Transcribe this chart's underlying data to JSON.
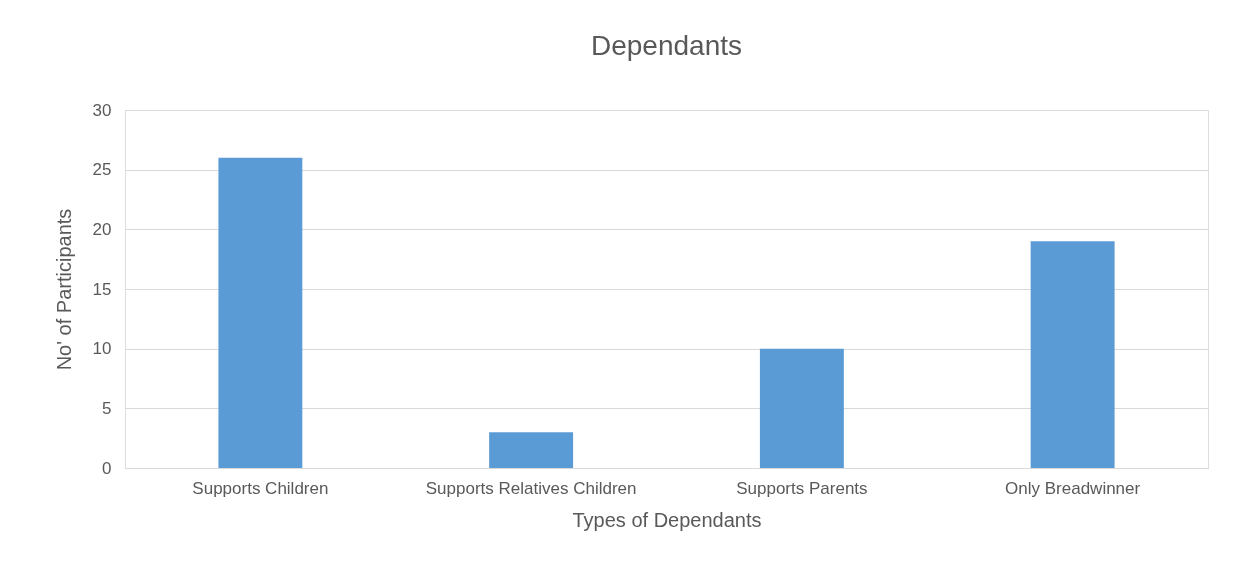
{
  "chart_data": {
    "type": "bar",
    "title": "Dependants",
    "xlabel": "Types of Dependants",
    "ylabel": "No' of Participants",
    "categories": [
      "Supports Children",
      "Supports Relatives Children",
      "Supports Parents",
      "Only Breadwinner"
    ],
    "values": [
      26,
      3,
      10,
      19
    ],
    "color": "#5b9bd5",
    "ylim": [
      0,
      30
    ],
    "yticks": [
      0,
      5,
      10,
      15,
      20,
      25,
      30
    ],
    "grid": "y"
  }
}
